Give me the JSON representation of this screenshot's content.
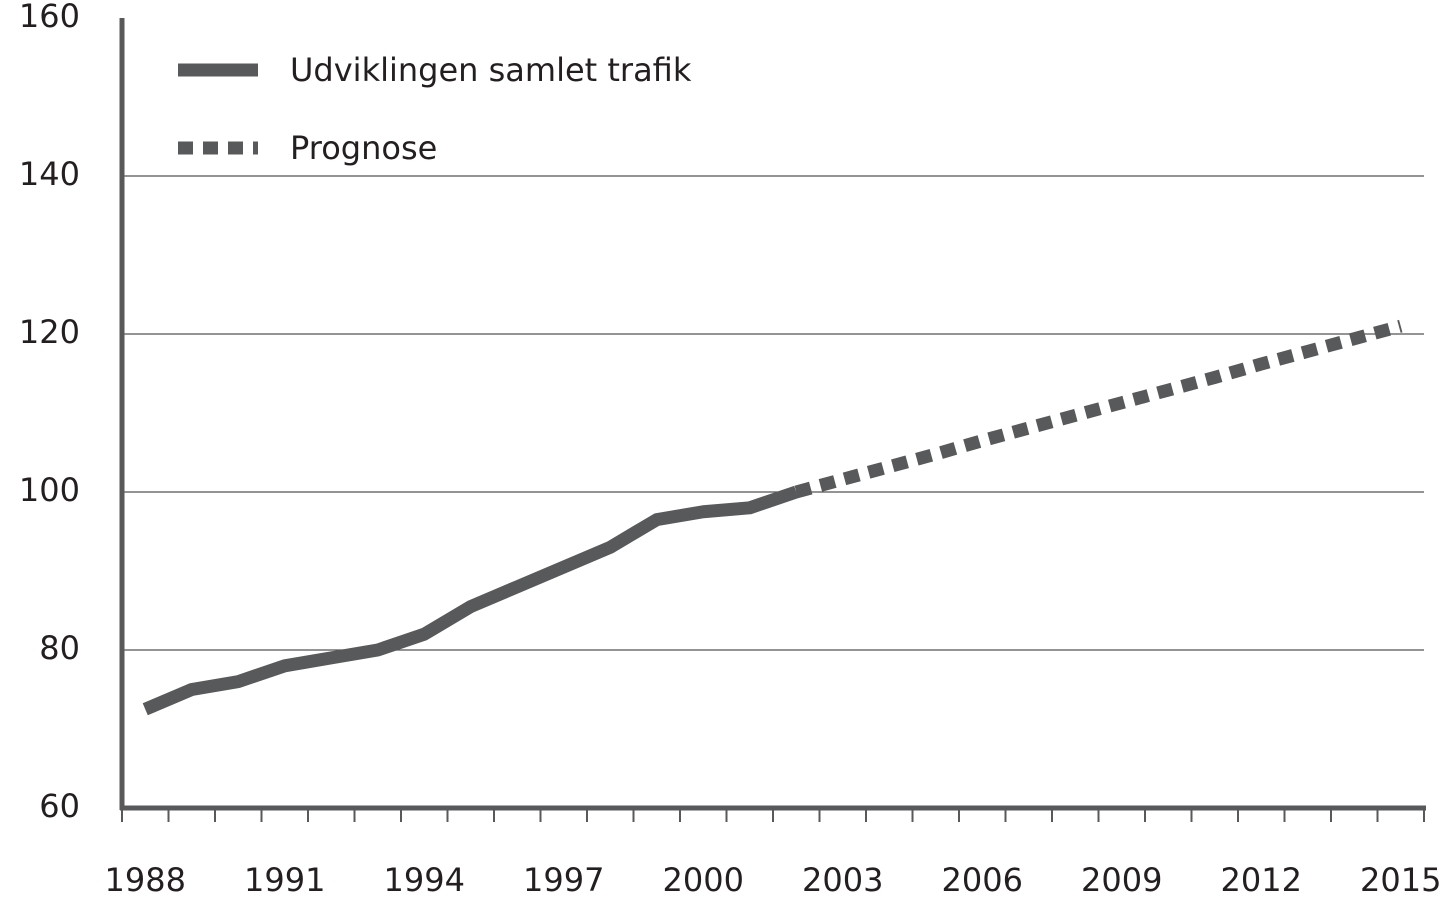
{
  "chart_data": {
    "type": "line",
    "categories": [
      "1988",
      null,
      null,
      "1991",
      null,
      null,
      "1994",
      null,
      null,
      "1997",
      null,
      null,
      "2000",
      null,
      null,
      "2003",
      null,
      null,
      "2006",
      null,
      null,
      "2009",
      null,
      null,
      "2012",
      null,
      null,
      "2015"
    ],
    "series": [
      {
        "name": "Udviklingen samlet trafik",
        "color": "#58595b",
        "style": "solid",
        "values": [
          72.5,
          75,
          76,
          78,
          79,
          80,
          82,
          85.5,
          88,
          90.5,
          93,
          96.5,
          97.5,
          98,
          100,
          null,
          null,
          null,
          null,
          null,
          null,
          null,
          null,
          null,
          null,
          null,
          null,
          null
        ]
      },
      {
        "name": "Prognose",
        "color": "#58595b",
        "style": "dotted",
        "values": [
          null,
          null,
          null,
          null,
          null,
          null,
          null,
          null,
          null,
          null,
          null,
          null,
          null,
          null,
          100,
          101.6,
          103.2,
          104.8,
          106.5,
          108.1,
          109.7,
          111.3,
          112.9,
          114.5,
          116.2,
          117.8,
          119.4,
          121
        ]
      }
    ],
    "ylim": [
      60,
      160
    ],
    "yticks": [
      60,
      80,
      100,
      120,
      140,
      160
    ],
    "grid": true,
    "legend": "top-left"
  }
}
